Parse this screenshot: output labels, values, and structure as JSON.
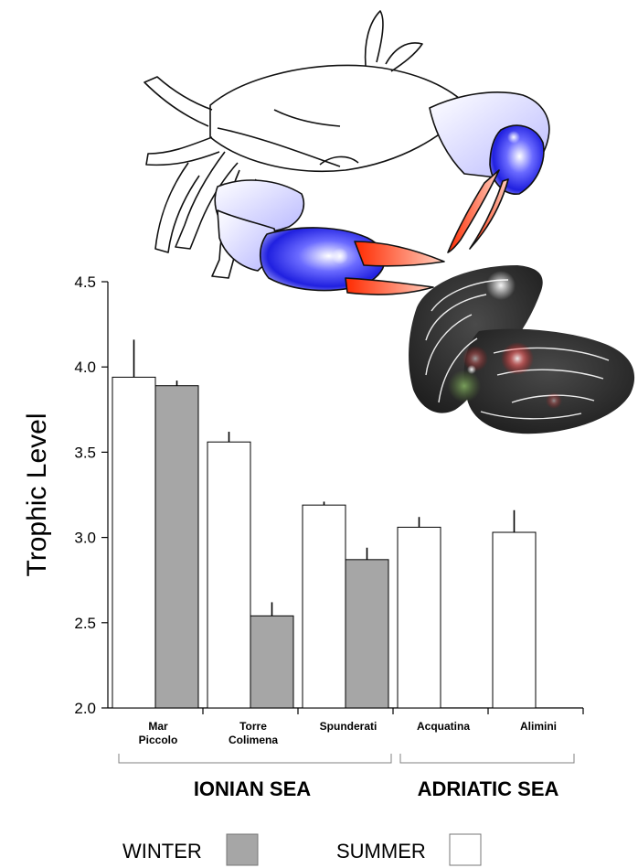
{
  "chart_data": {
    "type": "bar",
    "ylabel": "Trophic Level",
    "xlabel": "",
    "ylim": [
      2.0,
      4.5
    ],
    "yticks": [
      "2.0",
      "2.5",
      "3.0",
      "3.5",
      "4.0",
      "4.5"
    ],
    "categories": [
      [
        "Mar",
        "Piccolo"
      ],
      [
        "Torre",
        "Colimena"
      ],
      [
        "Spunderati"
      ],
      [
        "Acquatina"
      ],
      [
        "Alimini"
      ]
    ],
    "series": [
      {
        "name": "SUMMER",
        "color": "#ffffff",
        "values": [
          3.94,
          3.56,
          3.19,
          3.06,
          3.03
        ],
        "errors": [
          0.22,
          0.06,
          0.02,
          0.06,
          0.13
        ]
      },
      {
        "name": "WINTER",
        "color": "#a6a6a6",
        "values": [
          3.89,
          2.54,
          2.87,
          null,
          null
        ],
        "errors": [
          0.03,
          0.08,
          0.07,
          null,
          null
        ]
      }
    ],
    "groups": [
      {
        "label": "IONIAN SEA",
        "categories": [
          0,
          1,
          2
        ]
      },
      {
        "label": "ADRIATIC SEA",
        "categories": [
          3,
          4
        ]
      }
    ],
    "legend": {
      "placement": "bottom",
      "items": [
        {
          "label": "WINTER",
          "color": "#a6a6a6"
        },
        {
          "label": "SUMMER",
          "color": "#ffffff"
        }
      ]
    },
    "grid": false
  },
  "illustrations": {
    "top": "blue-crab-icon",
    "right": "mussel-icon"
  }
}
